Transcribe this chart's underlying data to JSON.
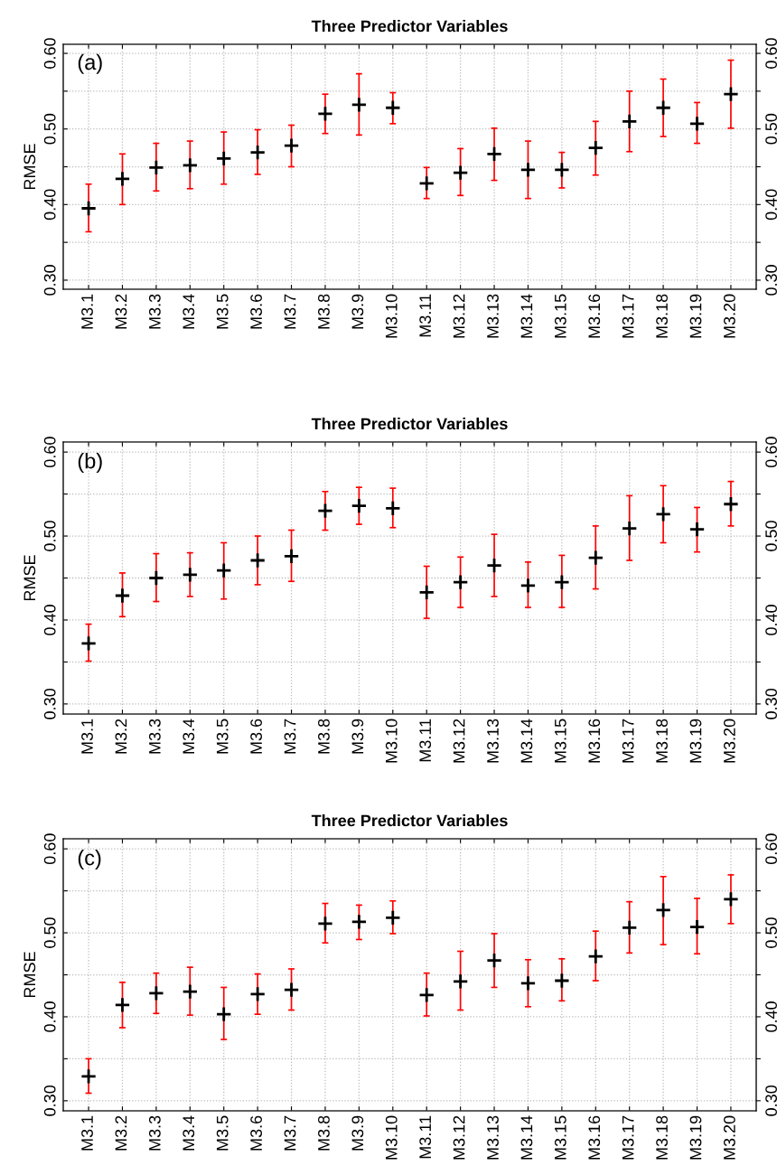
{
  "chart_data": [
    {
      "type": "scatter",
      "title": "Three Predictor Variables",
      "ylabel": "RMSE",
      "annotations": [
        "(a)"
      ],
      "marker": "cross",
      "grid": true,
      "categories": [
        "M3.1",
        "M3.2",
        "M3.3",
        "M3.4",
        "M3.5",
        "M3.6",
        "M3.7",
        "M3.8",
        "M3.9",
        "M3.10",
        "M3.11",
        "M3.12",
        "M3.13",
        "M3.14",
        "M3.15",
        "M3.16",
        "M3.17",
        "M3.18",
        "M3.19",
        "M3.20"
      ],
      "series": [
        {
          "color": "#000000",
          "values": [
            0.395,
            0.434,
            0.449,
            0.452,
            0.461,
            0.469,
            0.478,
            0.52,
            0.532,
            0.528,
            0.428,
            0.442,
            0.467,
            0.446,
            0.446,
            0.475,
            0.51,
            0.528,
            0.507,
            0.546
          ],
          "errors": [
            [
              0.364,
              0.427
            ],
            [
              0.4,
              0.467
            ],
            [
              0.418,
              0.481
            ],
            [
              0.421,
              0.484
            ],
            [
              0.427,
              0.496
            ],
            [
              0.44,
              0.499
            ],
            [
              0.45,
              0.505
            ],
            [
              0.494,
              0.546
            ],
            [
              0.492,
              0.573
            ],
            [
              0.507,
              0.548
            ],
            [
              0.408,
              0.449
            ],
            [
              0.412,
              0.474
            ],
            [
              0.432,
              0.501
            ],
            [
              0.408,
              0.484
            ],
            [
              0.422,
              0.469
            ],
            [
              0.439,
              0.51
            ],
            [
              0.47,
              0.55
            ],
            [
              0.49,
              0.566
            ],
            [
              0.481,
              0.535
            ],
            [
              0.501,
              0.591
            ]
          ]
        }
      ],
      "ylim": [
        0.288,
        0.612
      ],
      "yticks": [
        {
          "value": 0.3,
          "label": "0.30"
        },
        {
          "value": 0.35,
          "label": null
        },
        {
          "value": 0.4,
          "label": "0.40"
        },
        {
          "value": 0.45,
          "label": null
        },
        {
          "value": 0.5,
          "label": "0.50"
        },
        {
          "value": 0.55,
          "label": null
        },
        {
          "value": 0.6,
          "label": "0.60"
        }
      ],
      "y2lim": [
        0.288,
        0.612
      ],
      "y2ticks": [
        {
          "value": 0.3,
          "label": "0.30"
        },
        {
          "value": 0.35,
          "label": null
        },
        {
          "value": 0.4,
          "label": "0.40"
        },
        {
          "value": 0.45,
          "label": null
        },
        {
          "value": 0.5,
          "label": "0.50"
        },
        {
          "value": 0.55,
          "label": null
        },
        {
          "value": 0.6,
          "label": "0.60"
        }
      ]
    },
    {
      "type": "scatter",
      "title": "Three Predictor Variables",
      "ylabel": "RMSE",
      "annotations": [
        "(b)"
      ],
      "marker": "cross",
      "grid": true,
      "categories": [
        "M3.1",
        "M3.2",
        "M3.3",
        "M3.4",
        "M3.5",
        "M3.6",
        "M3.7",
        "M3.8",
        "M3.9",
        "M3.10",
        "M3.11",
        "M3.12",
        "M3.13",
        "M3.14",
        "M3.15",
        "M3.16",
        "M3.17",
        "M3.18",
        "M3.19",
        "M3.20"
      ],
      "series": [
        {
          "color": "#000000",
          "values": [
            0.372,
            0.429,
            0.45,
            0.454,
            0.459,
            0.471,
            0.476,
            0.53,
            0.536,
            0.533,
            0.433,
            0.445,
            0.465,
            0.441,
            0.445,
            0.474,
            0.509,
            0.526,
            0.508,
            0.538
          ],
          "errors": [
            [
              0.351,
              0.395
            ],
            [
              0.404,
              0.456
            ],
            [
              0.422,
              0.479
            ],
            [
              0.428,
              0.48
            ],
            [
              0.425,
              0.492
            ],
            [
              0.442,
              0.5
            ],
            [
              0.446,
              0.507
            ],
            [
              0.507,
              0.553
            ],
            [
              0.514,
              0.558
            ],
            [
              0.51,
              0.557
            ],
            [
              0.402,
              0.464
            ],
            [
              0.415,
              0.475
            ],
            [
              0.428,
              0.502
            ],
            [
              0.415,
              0.469
            ],
            [
              0.415,
              0.477
            ],
            [
              0.437,
              0.512
            ],
            [
              0.471,
              0.548
            ],
            [
              0.492,
              0.56
            ],
            [
              0.481,
              0.534
            ],
            [
              0.512,
              0.565
            ]
          ]
        }
      ],
      "ylim": [
        0.288,
        0.612
      ],
      "yticks": [
        {
          "value": 0.3,
          "label": "0.30"
        },
        {
          "value": 0.35,
          "label": null
        },
        {
          "value": 0.4,
          "label": "0.40"
        },
        {
          "value": 0.45,
          "label": null
        },
        {
          "value": 0.5,
          "label": "0.50"
        },
        {
          "value": 0.55,
          "label": null
        },
        {
          "value": 0.6,
          "label": "0.60"
        }
      ],
      "y2lim": [
        0.288,
        0.612
      ],
      "y2ticks": [
        {
          "value": 0.3,
          "label": "0.30"
        },
        {
          "value": 0.35,
          "label": null
        },
        {
          "value": 0.4,
          "label": "0.40"
        },
        {
          "value": 0.45,
          "label": null
        },
        {
          "value": 0.5,
          "label": "0.50"
        },
        {
          "value": 0.55,
          "label": null
        },
        {
          "value": 0.6,
          "label": "0.60"
        }
      ]
    },
    {
      "type": "scatter",
      "title": "Three Predictor Variables",
      "ylabel": "RMSE",
      "annotations": [
        "(c)"
      ],
      "marker": "cross",
      "grid": true,
      "categories": [
        "M3.1",
        "M3.2",
        "M3.3",
        "M3.4",
        "M3.5",
        "M3.6",
        "M3.7",
        "M3.8",
        "M3.9",
        "M3.10",
        "M3.11",
        "M3.12",
        "M3.13",
        "M3.14",
        "M3.15",
        "M3.16",
        "M3.17",
        "M3.18",
        "M3.19",
        "M3.20"
      ],
      "series": [
        {
          "color": "#000000",
          "values": [
            0.329,
            0.414,
            0.428,
            0.43,
            0.403,
            0.427,
            0.432,
            0.511,
            0.513,
            0.518,
            0.426,
            0.442,
            0.467,
            0.44,
            0.443,
            0.472,
            0.506,
            0.527,
            0.507,
            0.54
          ],
          "errors": [
            [
              0.309,
              0.35
            ],
            [
              0.387,
              0.441
            ],
            [
              0.404,
              0.452
            ],
            [
              0.402,
              0.459
            ],
            [
              0.373,
              0.435
            ],
            [
              0.403,
              0.451
            ],
            [
              0.408,
              0.457
            ],
            [
              0.488,
              0.535
            ],
            [
              0.492,
              0.533
            ],
            [
              0.499,
              0.538
            ],
            [
              0.401,
              0.452
            ],
            [
              0.408,
              0.478
            ],
            [
              0.435,
              0.499
            ],
            [
              0.412,
              0.468
            ],
            [
              0.419,
              0.469
            ],
            [
              0.443,
              0.502
            ],
            [
              0.476,
              0.537
            ],
            [
              0.486,
              0.567
            ],
            [
              0.475,
              0.541
            ],
            [
              0.511,
              0.569
            ]
          ]
        }
      ],
      "ylim": [
        0.288,
        0.612
      ],
      "yticks": [
        {
          "value": 0.3,
          "label": "0.30"
        },
        {
          "value": 0.35,
          "label": null
        },
        {
          "value": 0.4,
          "label": "0.40"
        },
        {
          "value": 0.45,
          "label": null
        },
        {
          "value": 0.5,
          "label": "0.50"
        },
        {
          "value": 0.55,
          "label": null
        },
        {
          "value": 0.6,
          "label": "0.60"
        }
      ],
      "y2lim": [
        0.288,
        0.612
      ],
      "y2ticks": [
        {
          "value": 0.3,
          "label": "0.30"
        },
        {
          "value": 0.35,
          "label": null
        },
        {
          "value": 0.4,
          "label": "0.40"
        },
        {
          "value": 0.45,
          "label": null
        },
        {
          "value": 0.5,
          "label": "0.50"
        },
        {
          "value": 0.55,
          "label": null
        },
        {
          "value": 0.6,
          "label": "0.60"
        }
      ]
    }
  ]
}
